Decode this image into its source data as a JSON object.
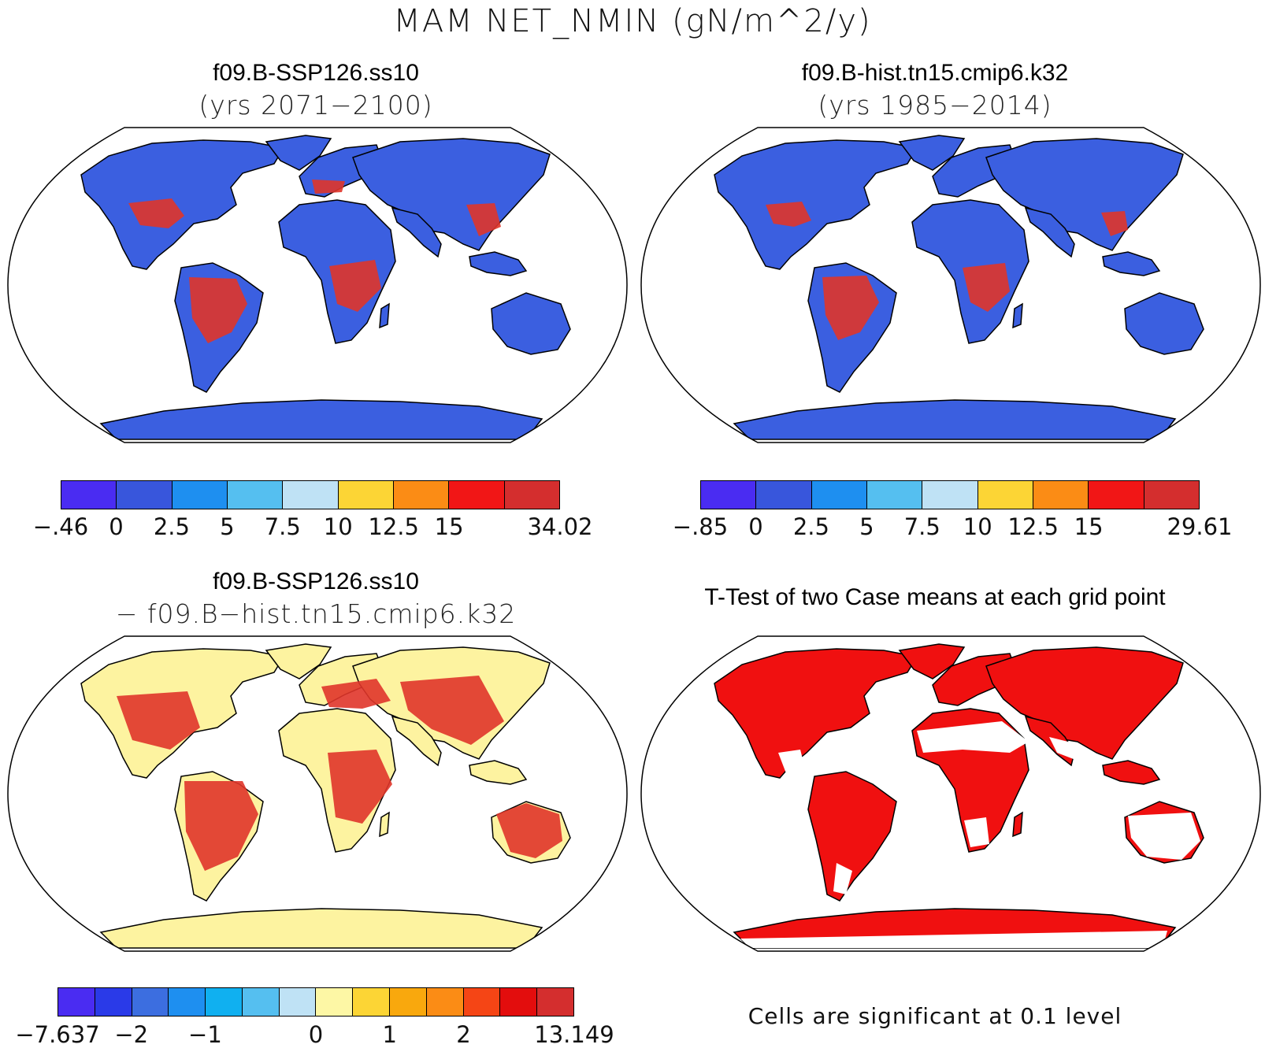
{
  "title": "MAM NET_NMIN (gN/m^2/y)",
  "panels": [
    {
      "title": "f09.B-SSP126.ss10",
      "subtitle": "(yrs 2071−2100)",
      "land_color": "#3b5fe0",
      "hot_color": "#e0352a",
      "colorbar": {
        "colors": [
          "#4a2cf2",
          "#3856dc",
          "#1e8ff0",
          "#55bff0",
          "#bfe2f5",
          "#fcd535",
          "#fb8c15",
          "#f11616",
          "#d42e2e"
        ],
        "ticks": [
          "−.46",
          "0",
          "2.5",
          "5",
          "7.5",
          "10",
          "12.5",
          "15",
          "34.02"
        ]
      }
    },
    {
      "title": "f09.B-hist.tn15.cmip6.k32",
      "subtitle": "(yrs 1985−2014)",
      "land_color": "#3b5fe0",
      "hot_color": "#e0352a",
      "colorbar": {
        "colors": [
          "#4a2cf2",
          "#3856dc",
          "#1e8ff0",
          "#55bff0",
          "#bfe2f5",
          "#fcd535",
          "#fb8c15",
          "#f11616",
          "#d42e2e"
        ],
        "ticks": [
          "−.85",
          "0",
          "2.5",
          "5",
          "7.5",
          "10",
          "12.5",
          "15",
          "29.61"
        ]
      }
    },
    {
      "title": "f09.B-SSP126.ss10",
      "subtitle": "− f09.B−hist.tn15.cmip6.k32",
      "land_color": "#fdf3a0",
      "hot_color": "#e0352a",
      "colorbar": {
        "colors": [
          "#4a2cf2",
          "#2a3ae8",
          "#3c6ee0",
          "#1e8ff0",
          "#10b0f0",
          "#55bff0",
          "#bfe2f5",
          "#fdf7a5",
          "#fcd535",
          "#f9a80d",
          "#fb8c15",
          "#f54515",
          "#e30d0d",
          "#d42e2e"
        ],
        "ticks": [
          "−7.637",
          "−2",
          "−1",
          "0",
          "1",
          "2",
          "13.149"
        ]
      }
    },
    {
      "title": "T-Test of two Case means at each grid point",
      "land_color": "#f01010",
      "note": "Cells are significant at 0.1 level"
    }
  ]
}
